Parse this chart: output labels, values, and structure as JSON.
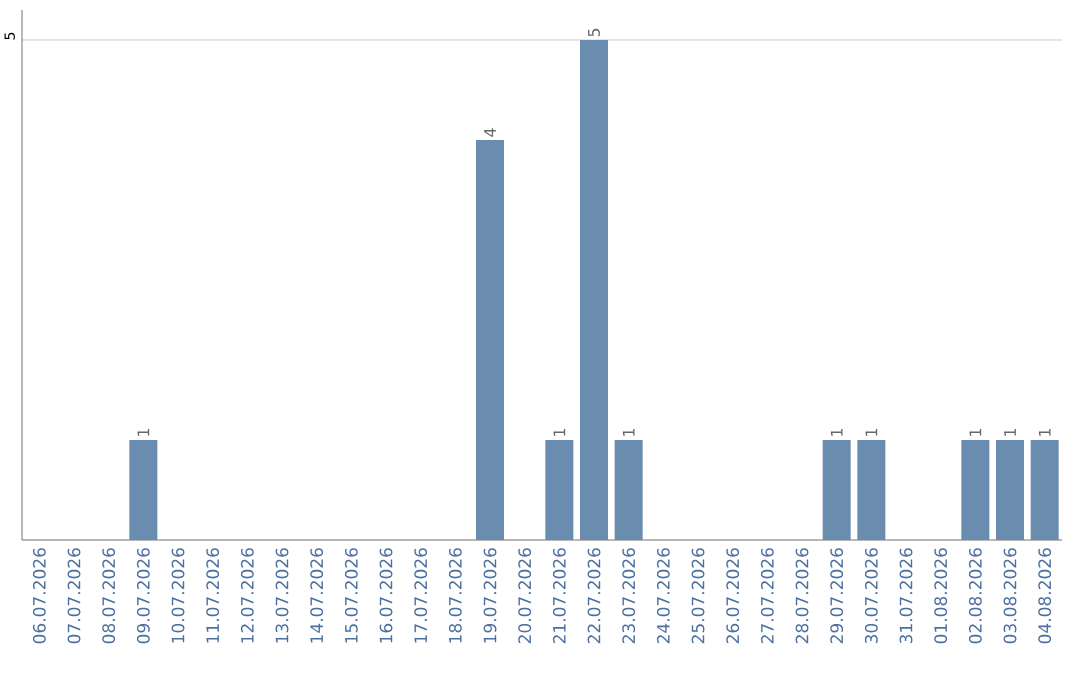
{
  "chart_data": {
    "type": "bar",
    "categories": [
      "06.07.2026",
      "07.07.2026",
      "08.07.2026",
      "09.07.2026",
      "10.07.2026",
      "11.07.2026",
      "12.07.2026",
      "13.07.2026",
      "14.07.2026",
      "15.07.2026",
      "16.07.2026",
      "17.07.2026",
      "18.07.2026",
      "19.07.2026",
      "20.07.2026",
      "21.07.2026",
      "22.07.2026",
      "23.07.2026",
      "24.07.2026",
      "25.07.2026",
      "26.07.2026",
      "27.07.2026",
      "28.07.2026",
      "29.07.2026",
      "30.07.2026",
      "31.07.2026",
      "01.08.2026",
      "02.08.2026",
      "03.08.2026",
      "04.08.2026"
    ],
    "values": [
      0,
      0,
      0,
      1,
      0,
      0,
      0,
      0,
      0,
      0,
      0,
      0,
      0,
      4,
      0,
      1,
      5,
      1,
      0,
      0,
      0,
      0,
      0,
      1,
      1,
      0,
      0,
      1,
      1,
      1
    ],
    "value_labels": [
      null,
      null,
      null,
      "1",
      null,
      null,
      null,
      null,
      null,
      null,
      null,
      null,
      null,
      "4",
      null,
      "1",
      "5",
      "1",
      null,
      null,
      null,
      null,
      null,
      "1",
      "1",
      null,
      null,
      "1",
      "1",
      "1"
    ],
    "color": "#6a8caf",
    "ylim": [
      0,
      5.3
    ],
    "yticks": [
      5
    ],
    "grid": "y"
  }
}
